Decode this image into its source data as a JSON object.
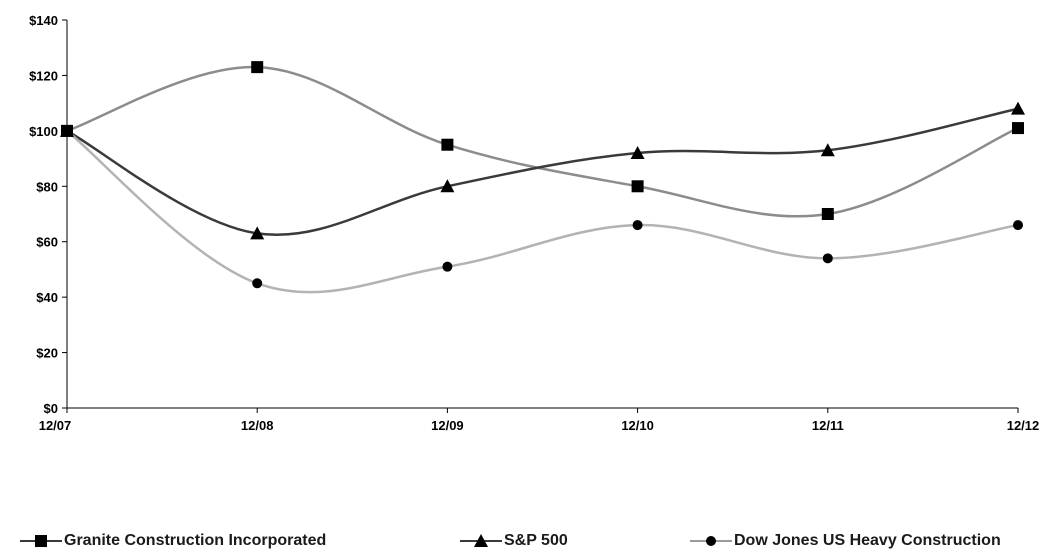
{
  "chart_data": {
    "type": "line",
    "title": "",
    "xlabel": "",
    "ylabel": "",
    "categories": [
      "12/07",
      "12/08",
      "12/09",
      "12/10",
      "12/11",
      "12/12"
    ],
    "ylim": [
      0,
      140
    ],
    "yticks": [
      "$0",
      "$20",
      "$40",
      "$60",
      "$80",
      "$100",
      "$120",
      "$140"
    ],
    "ytick_values": [
      0,
      20,
      40,
      60,
      80,
      100,
      120,
      140
    ],
    "grid": false,
    "legend_position": "bottom",
    "series": [
      {
        "name": "Granite Construction Incorporated",
        "marker": "square",
        "color": "#8c8c8c",
        "values": [
          100,
          123,
          95,
          80,
          70,
          101
        ]
      },
      {
        "name": "S&P 500",
        "marker": "triangle",
        "color": "#3a3a3a",
        "values": [
          100,
          63,
          80,
          92,
          93,
          108
        ]
      },
      {
        "name": "Dow Jones US Heavy Construction",
        "marker": "circle",
        "color": "#b3b3b3",
        "values": [
          100,
          45,
          51,
          66,
          54,
          66
        ]
      }
    ]
  }
}
